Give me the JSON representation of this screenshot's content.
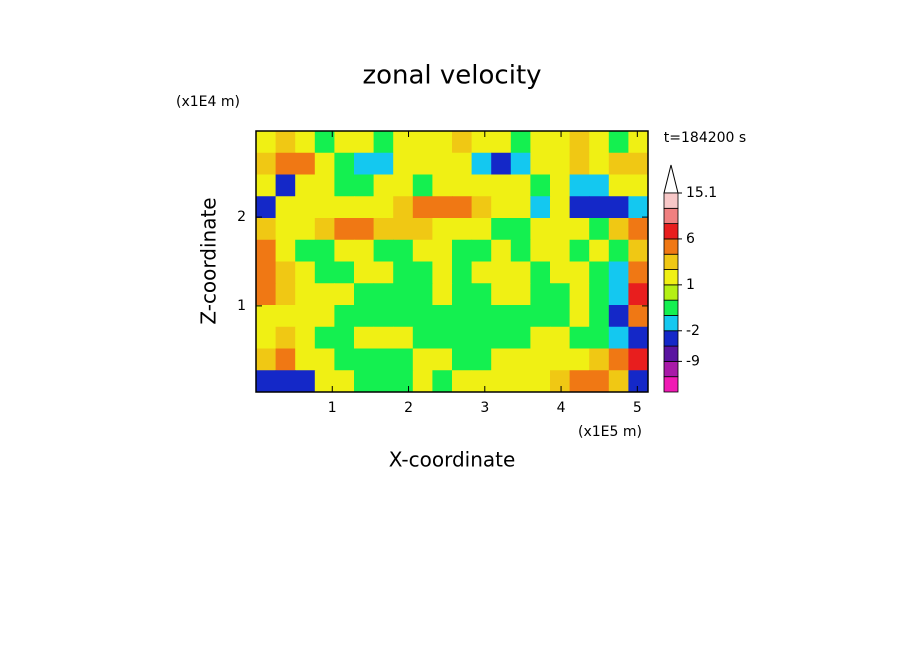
{
  "chart_data": {
    "type": "contour",
    "title": "zonal velocity",
    "x_label": "X-coordinate",
    "y_label": "Z-coordinate",
    "x_unit": "(x1E5 m)",
    "y_unit": "(x1E4 m)",
    "time_label": "t=184200 s",
    "xlim": [
      0,
      5.14
    ],
    "ylim": [
      0.03,
      2.97
    ],
    "xticks": [
      1,
      2,
      3,
      4,
      5
    ],
    "yticks": [
      1,
      2
    ],
    "z": [
      [
        1.5,
        2.5,
        1.5,
        -0.5,
        1.5,
        1.5,
        -0.5,
        1.5,
        1.5,
        1.5,
        2.5,
        1.5,
        1.5,
        -0.5,
        1.5,
        1.5,
        2.5,
        1.5,
        -0.5,
        1.5
      ],
      [
        2.5,
        4,
        4,
        1.5,
        -0.5,
        -1.5,
        -1.5,
        1.5,
        1.5,
        1.5,
        1.5,
        -1.5,
        -4,
        -1.5,
        1.5,
        1.5,
        2.5,
        1.5,
        2.5,
        2.5
      ],
      [
        1.5,
        -4,
        1.5,
        1.5,
        -0.5,
        -0.5,
        1.5,
        1.5,
        -0.5,
        1.5,
        1.5,
        1.5,
        1.5,
        1.5,
        -0.5,
        1.5,
        -1.5,
        -1.5,
        1.5,
        1.5
      ],
      [
        -4,
        1.5,
        1.5,
        1.5,
        1.5,
        1.5,
        1.5,
        2.5,
        4,
        4,
        4,
        2.5,
        1.5,
        1.5,
        -1.5,
        1.5,
        -4,
        -4,
        -5,
        -1.5
      ],
      [
        2.5,
        1.5,
        1.5,
        2.5,
        4,
        4,
        2.5,
        2.5,
        2.5,
        1.5,
        1.5,
        1.5,
        -0.5,
        -0.5,
        1.5,
        1.5,
        1.5,
        -0.5,
        2.5,
        4
      ],
      [
        4,
        1.5,
        -0.5,
        -0.5,
        1.5,
        1.5,
        -0.5,
        -0.5,
        1.5,
        1.5,
        -0.5,
        -0.5,
        1.5,
        -0.5,
        1.5,
        1.5,
        -0.5,
        1.5,
        -0.5,
        2.5
      ],
      [
        4,
        2.5,
        1.5,
        -0.5,
        -0.5,
        1.5,
        1.5,
        -0.5,
        -0.5,
        1.5,
        -0.5,
        1.5,
        1.5,
        1.5,
        -0.5,
        1.5,
        1.5,
        -0.5,
        -1.5,
        4
      ],
      [
        4,
        2.5,
        1.5,
        1.5,
        1.5,
        -0.5,
        -0.5,
        -0.5,
        -0.5,
        1.5,
        -0.5,
        -0.5,
        1.5,
        1.5,
        -0.5,
        -0.5,
        1.5,
        -0.5,
        -1.5,
        7
      ],
      [
        1.5,
        1.5,
        1.5,
        1.5,
        -0.5,
        -0.5,
        -0.5,
        -0.5,
        -0.5,
        -0.5,
        -0.5,
        -0.5,
        -0.5,
        -0.5,
        -0.5,
        -0.5,
        1.5,
        -0.5,
        -4,
        4
      ],
      [
        1.5,
        2.5,
        1.5,
        -0.5,
        -0.5,
        1.5,
        1.5,
        1.5,
        -0.5,
        -0.5,
        -0.5,
        -0.5,
        -0.5,
        -0.5,
        1.5,
        1.5,
        -0.5,
        -0.5,
        -1.5,
        -4
      ],
      [
        2.5,
        4,
        1.5,
        1.5,
        -0.5,
        -0.5,
        -0.5,
        -0.5,
        1.5,
        1.5,
        -0.5,
        -0.5,
        1.5,
        1.5,
        1.5,
        1.5,
        1.5,
        2.5,
        4,
        7
      ],
      [
        -4,
        -4,
        -5,
        1.5,
        1.5,
        -0.5,
        -0.5,
        -0.5,
        1.5,
        -0.5,
        1.5,
        1.5,
        1.5,
        1.5,
        1.5,
        2.5,
        4,
        4,
        2.5,
        -4
      ]
    ],
    "colorbar": {
      "levels": [
        -15,
        -12,
        -9,
        -6,
        -2,
        -1,
        0,
        1,
        2,
        3,
        6,
        9,
        12,
        15.1
      ],
      "colors": [
        "#f01ab4",
        "#a81aa8",
        "#5a14a0",
        "#1428c8",
        "#14c8f0",
        "#14f050",
        "#b4f014",
        "#f0f014",
        "#f0c814",
        "#f07814",
        "#e81e1e",
        "#f08080",
        "#f8c8c8"
      ],
      "over_color": "#ffffff",
      "ticks": [
        15.1,
        6,
        1,
        -2,
        -9
      ]
    }
  }
}
